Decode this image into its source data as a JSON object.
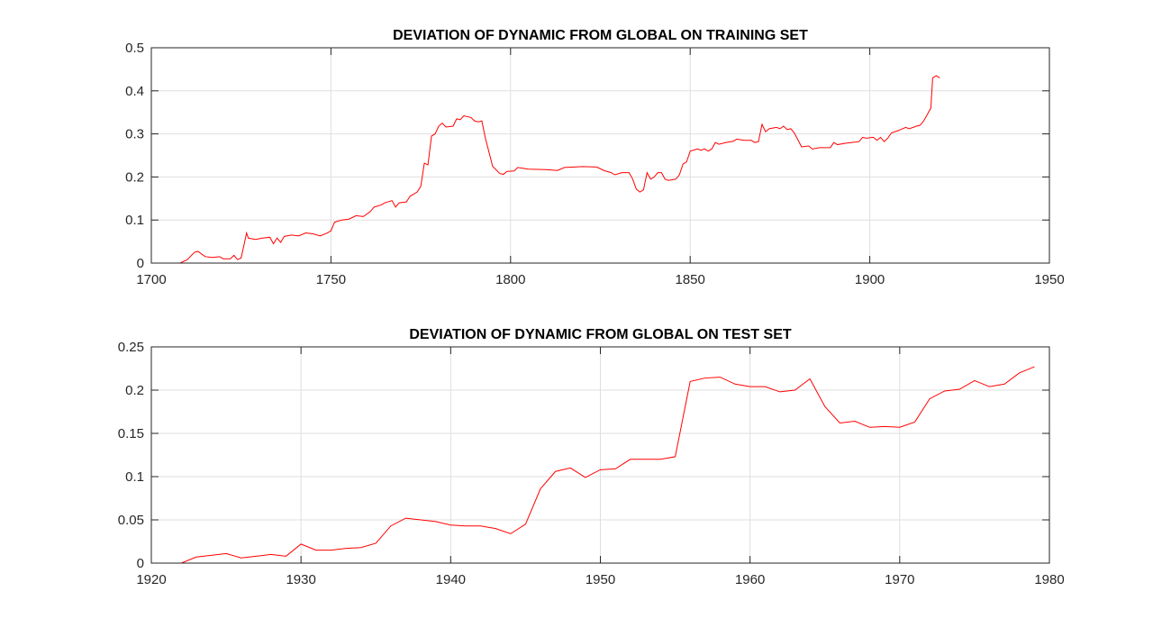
{
  "chart_data": [
    {
      "type": "line",
      "title": "DEVIATION OF DYNAMIC FROM GLOBAL ON TRAINING SET",
      "color": "#ff0000",
      "grid": true,
      "xlim": [
        1700,
        1950
      ],
      "xticks": [
        1700,
        1750,
        1800,
        1850,
        1900,
        1950
      ],
      "ylim": [
        0,
        0.5
      ],
      "yticks": [
        0,
        0.1,
        0.2,
        0.3,
        0.4,
        0.5
      ],
      "x": [
        1708,
        1710,
        1712,
        1713,
        1715,
        1717,
        1719,
        1720,
        1722,
        1723,
        1724,
        1725,
        1726,
        1726.5,
        1727,
        1729,
        1731,
        1733,
        1734,
        1735,
        1736,
        1737,
        1739,
        1741,
        1743,
        1745,
        1747,
        1749,
        1750,
        1751,
        1753,
        1755,
        1757,
        1759,
        1761,
        1762,
        1764,
        1765,
        1767,
        1768,
        1769,
        1771,
        1772,
        1774,
        1775,
        1776,
        1777,
        1778,
        1779,
        1780,
        1781,
        1782,
        1784,
        1785,
        1786,
        1787,
        1789,
        1790,
        1791,
        1792,
        1793,
        1795,
        1797,
        1798,
        1799,
        1801,
        1802,
        1805,
        1810,
        1813,
        1815,
        1820,
        1824,
        1826,
        1828,
        1829,
        1831,
        1833,
        1834,
        1835,
        1836,
        1837,
        1838,
        1839,
        1840,
        1841,
        1842,
        1843,
        1844,
        1846,
        1847,
        1848,
        1849,
        1850,
        1852,
        1853,
        1854,
        1855,
        1856,
        1857,
        1858,
        1860,
        1862,
        1863,
        1865,
        1867,
        1868,
        1869,
        1870,
        1871,
        1872,
        1874,
        1875,
        1876,
        1877,
        1878,
        1879,
        1881,
        1883,
        1884,
        1886,
        1889,
        1890,
        1891,
        1893,
        1895,
        1897,
        1898,
        1899,
        1901,
        1902,
        1903,
        1904,
        1905,
        1906,
        1908,
        1910,
        1911,
        1913,
        1914,
        1915,
        1916,
        1917,
        1917.5,
        1918.5,
        1919.5
      ],
      "values": [
        0,
        0.008,
        0.025,
        0.027,
        0.015,
        0.013,
        0.015,
        0.01,
        0.01,
        0.018,
        0.008,
        0.012,
        0.05,
        0.07,
        0.058,
        0.055,
        0.058,
        0.06,
        0.045,
        0.058,
        0.048,
        0.062,
        0.065,
        0.063,
        0.07,
        0.068,
        0.063,
        0.07,
        0.075,
        0.095,
        0.1,
        0.102,
        0.11,
        0.108,
        0.12,
        0.13,
        0.135,
        0.14,
        0.145,
        0.13,
        0.14,
        0.142,
        0.155,
        0.165,
        0.178,
        0.232,
        0.228,
        0.295,
        0.3,
        0.318,
        0.325,
        0.316,
        0.318,
        0.335,
        0.333,
        0.342,
        0.338,
        0.33,
        0.328,
        0.33,
        0.29,
        0.225,
        0.208,
        0.206,
        0.213,
        0.214,
        0.222,
        0.218,
        0.217,
        0.215,
        0.222,
        0.224,
        0.223,
        0.215,
        0.21,
        0.205,
        0.21,
        0.21,
        0.195,
        0.172,
        0.165,
        0.17,
        0.21,
        0.195,
        0.2,
        0.21,
        0.21,
        0.195,
        0.192,
        0.195,
        0.205,
        0.23,
        0.235,
        0.26,
        0.265,
        0.262,
        0.265,
        0.26,
        0.265,
        0.28,
        0.276,
        0.28,
        0.283,
        0.288,
        0.285,
        0.285,
        0.28,
        0.282,
        0.322,
        0.305,
        0.312,
        0.315,
        0.312,
        0.318,
        0.31,
        0.312,
        0.302,
        0.27,
        0.272,
        0.265,
        0.268,
        0.268,
        0.28,
        0.275,
        0.278,
        0.28,
        0.282,
        0.292,
        0.29,
        0.292,
        0.285,
        0.292,
        0.282,
        0.29,
        0.302,
        0.308,
        0.315,
        0.312,
        0.318,
        0.32,
        0.33,
        0.345,
        0.36,
        0.43,
        0.435,
        0.43
      ]
    },
    {
      "type": "line",
      "title": "DEVIATION OF DYNAMIC FROM GLOBAL ON TEST SET",
      "color": "#ff0000",
      "grid": true,
      "xlim": [
        1920,
        1980
      ],
      "xticks": [
        1920,
        1930,
        1940,
        1950,
        1960,
        1970,
        1980
      ],
      "ylim": [
        0,
        0.25
      ],
      "yticks": [
        0,
        0.05,
        0.1,
        0.15,
        0.2,
        0.25
      ],
      "x": [
        1921,
        1922,
        1923,
        1924,
        1925,
        1926,
        1927,
        1928,
        1929,
        1930,
        1931,
        1932,
        1933,
        1934,
        1935,
        1936,
        1937,
        1938,
        1939,
        1940,
        1941,
        1942,
        1943,
        1944,
        1945,
        1946,
        1947,
        1948,
        1949,
        1950,
        1951,
        1952,
        1953,
        1954,
        1955,
        1956,
        1957,
        1958,
        1959,
        1960,
        1961,
        1962,
        1963,
        1964,
        1965,
        1966,
        1967,
        1968,
        1969,
        1970,
        1971,
        1972,
        1973,
        1974,
        1975,
        1976,
        1977,
        1978,
        1979
      ],
      "values": [
        0,
        0,
        0.007,
        0.009,
        0.011,
        0.006,
        0.008,
        0.01,
        0.008,
        0.022,
        0.015,
        0.015,
        0.017,
        0.018,
        0.023,
        0.043,
        0.052,
        0.05,
        0.048,
        0.044,
        0.043,
        0.043,
        0.04,
        0.034,
        0.045,
        0.086,
        0.106,
        0.11,
        0.099,
        0.108,
        0.109,
        0.12,
        0.12,
        0.12,
        0.123,
        0.21,
        0.214,
        0.215,
        0.207,
        0.204,
        0.204,
        0.198,
        0.2,
        0.213,
        0.181,
        0.162,
        0.164,
        0.157,
        0.158,
        0.157,
        0.163,
        0.19,
        0.199,
        0.201,
        0.211,
        0.204,
        0.207,
        0.22,
        0.227
      ]
    }
  ]
}
